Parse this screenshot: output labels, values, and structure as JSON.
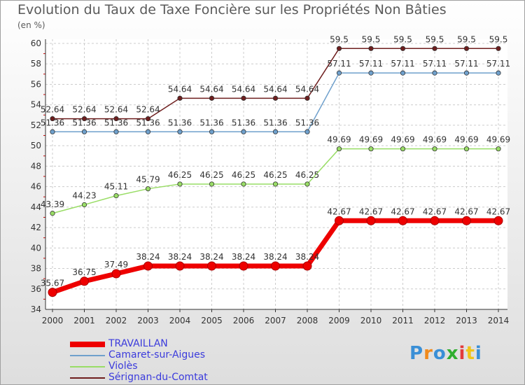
{
  "header": {
    "title": "Evolution du Taux de Taxe Foncière sur les Propriétés Non Bâties",
    "unit": "(en %)"
  },
  "chart_data": {
    "type": "line",
    "title": "Evolution du Taux de Taxe Foncière sur les Propriétés Non Bâties",
    "ylabel": "(en %)",
    "xlabel": "",
    "x": [
      "2000",
      "2001",
      "2002",
      "2003",
      "2004",
      "2005",
      "2006",
      "2007",
      "2008",
      "2009",
      "2010",
      "2011",
      "2012",
      "2013",
      "2014"
    ],
    "ylim": [
      34,
      60
    ],
    "yticks": [
      34,
      36,
      38,
      40,
      42,
      44,
      46,
      48,
      50,
      52,
      54,
      56,
      58,
      60
    ],
    "grid": true,
    "legend_position": "bottom",
    "series": [
      {
        "name": "Sérignan-du-Comtat",
        "color": "#6e1e1e",
        "values": [
          52.64,
          52.64,
          52.64,
          52.64,
          54.64,
          54.64,
          54.64,
          54.64,
          54.64,
          59.5,
          59.5,
          59.5,
          59.5,
          59.5,
          59.5
        ],
        "labels": [
          "52.64",
          "52.64",
          "52.64",
          "52.64",
          "54.64",
          "54.64",
          "54.64",
          "54.64",
          "54.64",
          "59.5",
          "59.5",
          "59.5",
          "59.5",
          "59.5",
          "59.5"
        ]
      },
      {
        "name": "Camaret-sur-Aigues",
        "color": "#6fa0cc",
        "values": [
          51.36,
          51.36,
          51.36,
          51.36,
          51.36,
          51.36,
          51.36,
          51.36,
          51.36,
          57.11,
          57.11,
          57.11,
          57.11,
          57.11,
          57.11
        ],
        "labels": [
          "51.36",
          "51.36",
          "51.36",
          "51.36",
          "51.36",
          "51.36",
          "51.36",
          "51.36",
          "51.36",
          "57.11",
          "57.11",
          "57.11",
          "57.11",
          "57.11",
          "57.11"
        ]
      },
      {
        "name": "Violès",
        "color": "#99dd66",
        "values": [
          43.39,
          44.23,
          45.11,
          45.79,
          46.25,
          46.25,
          46.25,
          46.25,
          46.25,
          49.69,
          49.69,
          49.69,
          49.69,
          49.69,
          49.69
        ],
        "labels": [
          "43.39",
          "44.23",
          "45.11",
          "45.79",
          "46.25",
          "46.25",
          "46.25",
          "46.25",
          "46.25",
          "49.69",
          "49.69",
          "49.69",
          "49.69",
          "49.69",
          "49.69"
        ]
      },
      {
        "name": "TRAVAILLAN",
        "color": "#ee0000",
        "values": [
          35.67,
          36.75,
          37.49,
          38.24,
          38.24,
          38.24,
          38.24,
          38.24,
          38.24,
          42.67,
          42.67,
          42.67,
          42.67,
          42.67,
          42.67
        ],
        "labels": [
          "35.67",
          "36.75",
          "37.49",
          "38.24",
          "38.24",
          "38.24",
          "38.24",
          "38.24",
          "38.24",
          "42.67",
          "42.67",
          "42.67",
          "42.67",
          "42.67",
          "42.67"
        ]
      }
    ]
  },
  "legend": [
    {
      "label": "TRAVAILLAN",
      "color": "#ee0000"
    },
    {
      "label": "Camaret-sur-Aigues",
      "color": "#6fa0cc"
    },
    {
      "label": "Violès",
      "color": "#99dd66"
    },
    {
      "label": "Sérignan-du-Comtat",
      "color": "#6e1e1e"
    }
  ],
  "logo": {
    "text": "Proxiti"
  }
}
